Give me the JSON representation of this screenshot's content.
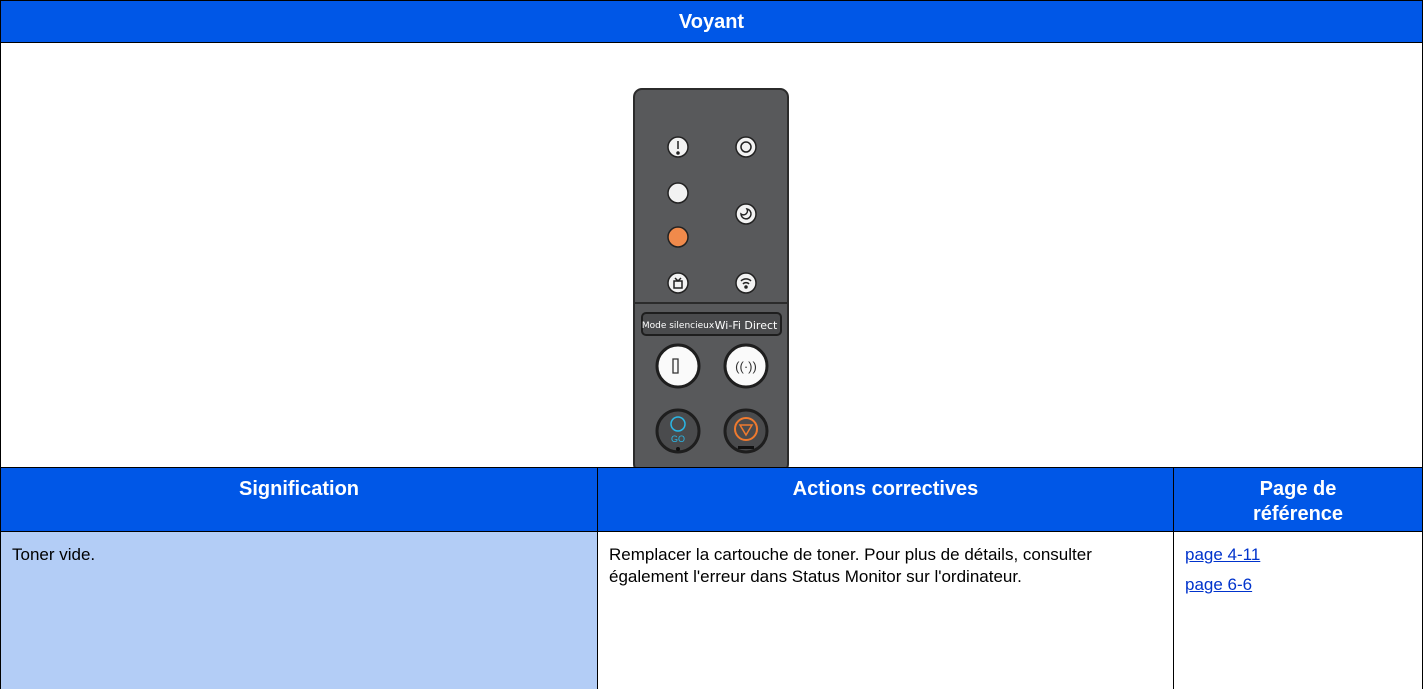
{
  "header": {
    "title": "Voyant"
  },
  "panel": {
    "labels": [
      "Mode silencieux",
      "Wi-Fi Direct"
    ],
    "go": "GO"
  },
  "table": {
    "columns": [
      "Signification",
      "Actions correctives",
      "Page de référence"
    ],
    "rows": [
      [
        "Toner vide.",
        "Remplacer la cartouche de toner.  Pour plus de détails, consulter également l'erreur dans Status Monitor sur l'ordinateur.",
        [
          "page 4-11",
          "page 6-6"
        ]
      ]
    ]
  }
}
